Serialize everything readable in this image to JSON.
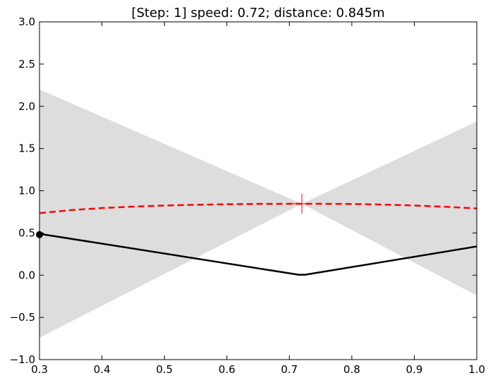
{
  "chart_data": {
    "type": "line",
    "title": "[Step: 1] speed: 0.72; distance: 0.845m",
    "xlim": [
      0.3,
      1.0
    ],
    "ylim": [
      -1.0,
      3.0
    ],
    "x_ticks": [
      "0.3",
      "0.4",
      "0.5",
      "0.6",
      "0.7",
      "0.8",
      "0.9",
      "1.0"
    ],
    "y_ticks": [
      "-1.0",
      "-0.5",
      "0.0",
      "0.5",
      "1.0",
      "1.5",
      "2.0",
      "2.5",
      "3.0"
    ],
    "grid": false,
    "legend": "none",
    "series": [
      {
        "style": "shaded-band",
        "color": "#dddddd",
        "x": [
          0.3,
          0.72,
          1.0
        ],
        "upper": [
          2.2,
          0.845,
          1.82
        ],
        "lower": [
          -0.74,
          0.845,
          -0.24
        ]
      },
      {
        "style": "dashed",
        "color": "#ff0000",
        "x": [
          0.3,
          0.35,
          0.4,
          0.45,
          0.5,
          0.55,
          0.6,
          0.65,
          0.7,
          0.72,
          0.75,
          0.8,
          0.85,
          0.9,
          0.95,
          1.0
        ],
        "y": [
          0.735,
          0.77,
          0.795,
          0.812,
          0.825,
          0.834,
          0.84,
          0.844,
          0.845,
          0.845,
          0.845,
          0.843,
          0.836,
          0.825,
          0.81,
          0.79
        ]
      },
      {
        "style": "solid",
        "color": "#000000",
        "x": [
          0.3,
          0.715,
          0.725,
          1.0
        ],
        "y": [
          0.49,
          0.005,
          0.005,
          0.34
        ]
      }
    ],
    "markers": [
      {
        "shape": "plus",
        "color": "#ff0000",
        "x": 0.72,
        "y": 0.845
      },
      {
        "shape": "circle",
        "color": "#000000",
        "x": 0.3,
        "y": 0.48
      }
    ]
  }
}
